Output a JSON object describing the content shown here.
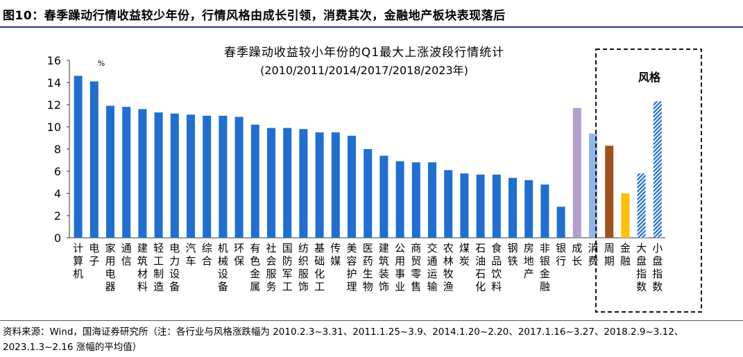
{
  "figure": {
    "title": "图10：春季躁动行情收益较少年份，行情风格由成长引领，消费其次，金融地产板块表现落后",
    "source": "资料来源：Wind，国海证券研究所（注：各行业与风格涨跌幅为 2010.2.3~3.31、2011.1.25~3.9、2014.1.20~2.20、2017.1.16~3.27、2018.2.9~3.12、2023.1.3~2.16 涨幅的平均值）"
  },
  "chart_data": {
    "type": "bar",
    "title": "春季躁动收益较小年份的Q1最大上涨波段行情统计",
    "subtitle": "(2010/2011/2014/2017/2018/2023年)",
    "ylabel": "%",
    "ylim": [
      0,
      16
    ],
    "yticks": [
      0,
      2,
      4,
      6,
      8,
      10,
      12,
      14,
      16
    ],
    "grid": false,
    "style_box_label": "风格",
    "categories": [
      "计算机",
      "电子",
      "家用电器",
      "通信",
      "建筑材料",
      "轻工制造",
      "电力设备",
      "汽车",
      "综合",
      "机械设备",
      "环保",
      "有色金属",
      "社会服务",
      "国防军工",
      "纺织服饰",
      "基础化工",
      "传媒",
      "美容护理",
      "医药生物",
      "建筑装饰",
      "公用事业",
      "商贸零售",
      "交通运输",
      "农林牧渔",
      "煤炭",
      "石油石化",
      "食品饮料",
      "钢铁",
      "房地产",
      "非银金融",
      "银行"
    ],
    "values": [
      14.6,
      14.1,
      11.9,
      11.8,
      11.6,
      11.3,
      11.2,
      11.1,
      11.0,
      11.0,
      10.9,
      10.2,
      9.9,
      9.9,
      9.8,
      9.5,
      9.5,
      9.2,
      8.0,
      7.4,
      6.9,
      6.8,
      6.8,
      6.1,
      5.8,
      5.7,
      5.7,
      5.4,
      5.2,
      4.8,
      2.8
    ],
    "bar_color": "#1f6fd1",
    "style_categories": [
      "成长",
      "消费",
      "周期",
      "金融",
      "大盘指数",
      "小盘指数"
    ],
    "style_values": [
      11.7,
      9.4,
      8.3,
      4.0,
      5.8,
      12.3
    ],
    "style_colors": [
      "#b49fce",
      "#8fb6e6",
      "#a0521c",
      "#ffc000",
      "#1f6fd1",
      "#1f6fd1"
    ]
  }
}
